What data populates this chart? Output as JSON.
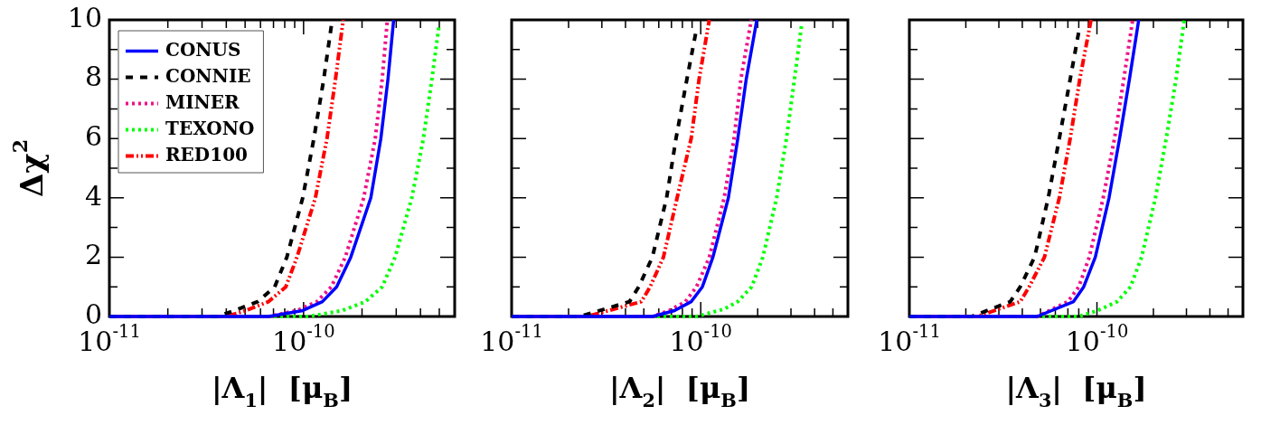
{
  "chart_data": [
    {
      "type": "line",
      "xlabel": "|Λ$_{1}$|  [μ$_{B}$]",
      "ylabel": "Δχ$^{2}$",
      "log": "x",
      "xlim": [
        1e-11,
        6e-10
      ],
      "ylim": [
        0,
        10
      ],
      "xticks": [
        {
          "value": 1e-11,
          "label": "10$^{-11}$"
        },
        {
          "value": 2e-11,
          "label": null
        },
        {
          "value": 3e-11,
          "label": null
        },
        {
          "value": 4e-11,
          "label": null
        },
        {
          "value": 5e-11,
          "label": null
        },
        {
          "value": 6e-11,
          "label": null
        },
        {
          "value": 7e-11,
          "label": null
        },
        {
          "value": 8e-11,
          "label": null
        },
        {
          "value": 9e-11,
          "label": null
        },
        {
          "value": 1e-10,
          "label": "10$^{-10}$"
        },
        {
          "value": 2e-10,
          "label": null
        },
        {
          "value": 3e-10,
          "label": null
        },
        {
          "value": 4e-10,
          "label": null
        },
        {
          "value": 5e-10,
          "label": null
        }
      ],
      "yticks": [
        0,
        {
          "value": 1,
          "label": null
        },
        2,
        {
          "value": 3,
          "label": null
        },
        4,
        {
          "value": 5,
          "label": null
        },
        6,
        {
          "value": 7,
          "label": null
        },
        8,
        {
          "value": 9,
          "label": null
        },
        10
      ],
      "legend": "top left",
      "grid": false,
      "series": [
        {
          "name": "CONUS",
          "color": "#0000ff",
          "line_style": "solid",
          "x": [
            1e-11,
            6.6e-11,
            9.9e-11,
            1.25e-10,
            1.48e-10,
            1.75e-10,
            2.22e-10,
            2.5e-10,
            2.72e-10,
            2.91e-10
          ],
          "values": [
            0,
            0,
            0.2,
            0.5,
            1,
            2,
            4,
            6,
            8,
            10
          ]
        },
        {
          "name": "CONNIE",
          "color": "#000000",
          "line_style": "dashed",
          "x": [
            1e-11,
            3.6e-11,
            4.4e-11,
            5.8e-11,
            7.1e-11,
            8.2e-11,
            9.9e-11,
            1.13e-10,
            1.27e-10,
            1.39e-10
          ],
          "values": [
            0,
            0,
            0.2,
            0.5,
            1,
            2,
            4,
            6,
            8,
            9.8
          ]
        },
        {
          "name": "MINER",
          "color": "#ee1289",
          "line_style": "dotted",
          "x": [
            1e-11,
            6.6e-11,
            9.25e-11,
            1.17e-10,
            1.39e-10,
            1.64e-10,
            2.04e-10,
            2.34e-10,
            2.54e-10,
            2.7e-10
          ],
          "values": [
            0,
            0,
            0.2,
            0.5,
            1,
            2,
            4,
            6,
            8,
            10
          ]
        },
        {
          "name": "TEXONO",
          "color": "#00ff00",
          "line_style": "dotted",
          "x": [
            1e-11,
            1.06e-10,
            1.58e-10,
            2.08e-10,
            2.54e-10,
            2.96e-10,
            3.61e-10,
            4.14e-10,
            4.58e-10,
            4.98e-10
          ],
          "values": [
            0,
            0,
            0.2,
            0.5,
            1,
            2,
            4,
            6,
            8,
            9.8
          ]
        },
        {
          "name": "RED100",
          "color": "#ff0000",
          "line_style": "dashdot",
          "x": [
            1e-11,
            4e-11,
            5.05e-11,
            6.6e-11,
            8.1e-11,
            9.25e-11,
            1.15e-10,
            1.32e-10,
            1.46e-10,
            1.6e-10
          ],
          "values": [
            0,
            0,
            0.2,
            0.5,
            1,
            2,
            4,
            6,
            8,
            10
          ]
        }
      ]
    },
    {
      "type": "line",
      "xlabel": "|Λ$_{2}$|  [μ$_{B}$]",
      "log": "x",
      "xlim": [
        1e-11,
        6e-10
      ],
      "ylim": [
        0,
        10
      ],
      "tick_labels": "x",
      "xticks": [
        {
          "value": 1e-11,
          "label": "10$^{-11}$"
        },
        {
          "value": 2e-11,
          "label": null
        },
        {
          "value": 3e-11,
          "label": null
        },
        {
          "value": 4e-11,
          "label": null
        },
        {
          "value": 5e-11,
          "label": null
        },
        {
          "value": 6e-11,
          "label": null
        },
        {
          "value": 7e-11,
          "label": null
        },
        {
          "value": 8e-11,
          "label": null
        },
        {
          "value": 9e-11,
          "label": null
        },
        {
          "value": 1e-10,
          "label": "10$^{-10}$"
        },
        {
          "value": 2e-10,
          "label": null
        },
        {
          "value": 3e-10,
          "label": null
        },
        {
          "value": 4e-10,
          "label": null
        },
        {
          "value": 5e-10,
          "label": null
        }
      ],
      "yticks": [
        0,
        {
          "value": 1,
          "label": null
        },
        2,
        {
          "value": 3,
          "label": null
        },
        4,
        {
          "value": 5,
          "label": null
        },
        6,
        {
          "value": 7,
          "label": null
        },
        8,
        {
          "value": 9,
          "label": null
        },
        10
      ],
      "grid": false,
      "series": [
        {
          "color": "#0000ff",
          "line_style": "solid",
          "x": [
            1e-11,
            5.55e-11,
            7.27e-11,
            8.9e-11,
            1.02e-10,
            1.16e-10,
            1.4e-10,
            1.57e-10,
            1.74e-10,
            1.98e-10
          ],
          "values": [
            0,
            0,
            0.2,
            0.5,
            1,
            2,
            4,
            6,
            8,
            10
          ]
        },
        {
          "color": "#000000",
          "line_style": "dashed",
          "x": [
            1e-11,
            2.3e-11,
            4.2e-11,
            4.7e-11,
            5.55e-11,
            6.6e-11,
            7.4e-11,
            8.45e-11,
            9.5e-11
          ],
          "values": [
            0,
            0,
            0.5,
            1,
            2,
            4,
            6,
            8,
            9.7
          ]
        },
        {
          "color": "#ee1289",
          "line_style": "dotted",
          "x": [
            1e-11,
            5.55e-11,
            6.8e-11,
            8.3e-11,
            9.5e-11,
            1.11e-10,
            1.33e-10,
            1.5e-10,
            1.63e-10,
            1.85e-10
          ],
          "values": [
            0,
            0,
            0.2,
            0.5,
            1,
            2,
            4,
            6,
            8,
            10
          ]
        },
        {
          "color": "#00ff00",
          "line_style": "dotted",
          "x": [
            1e-11,
            9.5e-11,
            1.33e-10,
            1.57e-10,
            1.86e-10,
            2.13e-10,
            2.52e-10,
            2.84e-10,
            3.13e-10,
            3.41e-10
          ],
          "values": [
            0,
            0,
            0.25,
            0.5,
            1,
            2,
            4,
            6,
            8,
            9.8
          ]
        },
        {
          "color": "#ff0000",
          "line_style": "dashdot",
          "x": [
            1e-11,
            2.5e-11,
            4.85e-11,
            5.4e-11,
            6.35e-11,
            7.5e-11,
            8.9e-11,
            9.8e-11,
            1.11e-10
          ],
          "values": [
            0,
            0,
            0.5,
            1,
            2,
            4,
            6,
            8,
            10
          ]
        }
      ]
    },
    {
      "type": "line",
      "xlabel": "|Λ$_{3}$|  [μ$_{B}$]",
      "log": "x",
      "xlim": [
        1e-11,
        6e-10
      ],
      "ylim": [
        0,
        10
      ],
      "tick_labels": "x",
      "xticks": [
        {
          "value": 1e-11,
          "label": "10$^{-11}$"
        },
        {
          "value": 2e-11,
          "label": null
        },
        {
          "value": 3e-11,
          "label": null
        },
        {
          "value": 4e-11,
          "label": null
        },
        {
          "value": 5e-11,
          "label": null
        },
        {
          "value": 6e-11,
          "label": null
        },
        {
          "value": 7e-11,
          "label": null
        },
        {
          "value": 8e-11,
          "label": null
        },
        {
          "value": 9e-11,
          "label": null
        },
        {
          "value": 1e-10,
          "label": "10$^{-10}$"
        },
        {
          "value": 2e-10,
          "label": null
        },
        {
          "value": 3e-10,
          "label": null
        },
        {
          "value": 4e-10,
          "label": null
        },
        {
          "value": 5e-10,
          "label": null
        }
      ],
      "yticks": [
        0,
        {
          "value": 1,
          "label": null
        },
        2,
        {
          "value": 3,
          "label": null
        },
        4,
        {
          "value": 5,
          "label": null
        },
        6,
        {
          "value": 7,
          "label": null
        },
        8,
        {
          "value": 9,
          "label": null
        },
        10
      ],
      "grid": false,
      "series": [
        {
          "color": "#0000ff",
          "line_style": "solid",
          "x": [
            1e-11,
            4.8e-11,
            7.5e-11,
            8.5e-11,
            9.8e-11,
            1.16e-10,
            1.32e-10,
            1.49e-10,
            1.67e-10
          ],
          "values": [
            0,
            0,
            0.5,
            1,
            2,
            4,
            6,
            8,
            10
          ]
        },
        {
          "color": "#000000",
          "line_style": "dashed",
          "x": [
            1e-11,
            2.15e-11,
            3.45e-11,
            3.9e-11,
            4.65e-11,
            5.5e-11,
            6.3e-11,
            7.2e-11,
            8e-11
          ],
          "values": [
            0,
            0,
            0.5,
            1,
            2,
            4,
            6,
            8,
            9.6
          ]
        },
        {
          "color": "#ee1289",
          "line_style": "dotted",
          "x": [
            1e-11,
            4.8e-11,
            7e-11,
            8e-11,
            9.1e-11,
            1.08e-10,
            1.24e-10,
            1.39e-10,
            1.55e-10
          ],
          "values": [
            0,
            0,
            0.5,
            1,
            2,
            4,
            6,
            8,
            10
          ]
        },
        {
          "color": "#00ff00",
          "line_style": "dotted",
          "x": [
            1e-11,
            8e-11,
            1.01e-10,
            1.28e-10,
            1.51e-10,
            1.73e-10,
            2.05e-10,
            2.34e-10,
            2.64e-10,
            2.92e-10
          ],
          "values": [
            0,
            0,
            0.2,
            0.5,
            1,
            2,
            4,
            6,
            8,
            10
          ]
        },
        {
          "color": "#ff0000",
          "line_style": "dashdot",
          "x": [
            1e-11,
            2.3e-11,
            3.9e-11,
            4.35e-11,
            5.25e-11,
            6.3e-11,
            7.2e-11,
            8.1e-11,
            9.3e-11
          ],
          "values": [
            0,
            0,
            0.5,
            1,
            2,
            4,
            6,
            8,
            10
          ]
        }
      ]
    }
  ]
}
